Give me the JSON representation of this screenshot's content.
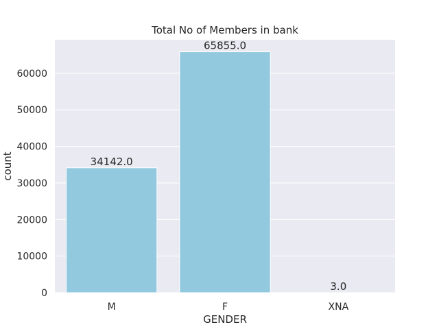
{
  "chart_data": {
    "type": "bar",
    "title": "Total No of Members in bank",
    "xlabel": "GENDER",
    "ylabel": "count",
    "categories": [
      "M",
      "F",
      "XNA"
    ],
    "values": [
      34142.0,
      65855.0,
      3.0
    ],
    "data_labels": [
      "34142.0",
      "65855.0",
      "3.0"
    ],
    "ylim": [
      0,
      69147.75
    ],
    "yticks": [
      0,
      10000,
      20000,
      30000,
      40000,
      50000,
      60000
    ],
    "grid": true,
    "bar_color": "#92c9de",
    "background_color": "#eaeaf2",
    "grid_color": "#ffffff"
  }
}
